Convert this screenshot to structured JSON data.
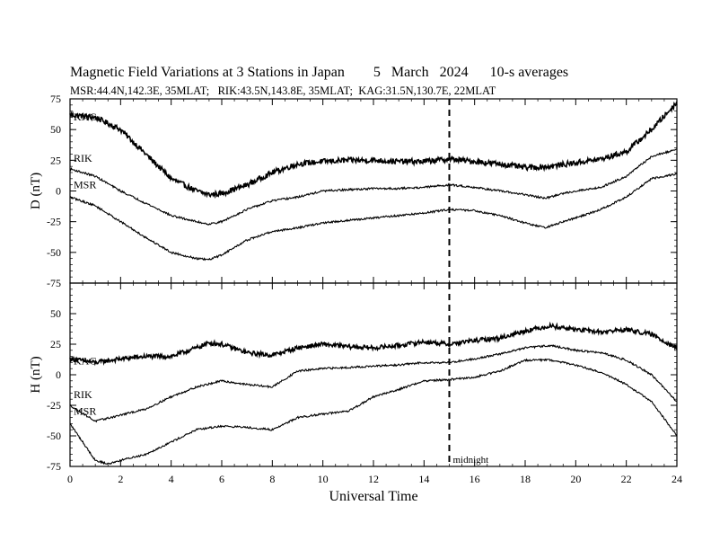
{
  "title": "Magnetic Field Variations at 3 Stations in Japan        5   March   2024      10-s averages",
  "subtitle": "MSR:44.4N,142.3E, 35MLAT;   RIK:43.5N,143.8E, 35MLAT;  KAG:31.5N,130.7E, 22MLAT",
  "chart_data": [
    {
      "type": "line",
      "panel": "top",
      "ylabel": "D (nT)",
      "xlabel": "",
      "xlim": [
        0,
        24
      ],
      "ylim": [
        -75,
        75
      ],
      "yticks": [
        -75,
        -50,
        -25,
        0,
        25,
        50,
        75
      ],
      "xticks": [
        0,
        2,
        4,
        6,
        8,
        10,
        12,
        14,
        16,
        18,
        20,
        22,
        24
      ],
      "vline": {
        "x": 15,
        "style": "dashed"
      },
      "series": [
        {
          "name": "KAG",
          "noise": 2.2,
          "x": [
            0,
            1,
            2,
            3,
            4,
            5,
            5.5,
            6,
            7,
            8,
            9,
            10,
            11,
            12,
            13,
            14,
            15,
            16,
            17,
            18,
            19,
            20,
            21,
            22,
            23,
            24
          ],
          "y": [
            62,
            60,
            50,
            30,
            10,
            0,
            -3,
            -2,
            5,
            15,
            22,
            24,
            25,
            25,
            24,
            24,
            26,
            24,
            22,
            19,
            20,
            23,
            26,
            32,
            50,
            72
          ]
        },
        {
          "name": "RIK",
          "noise": 0.8,
          "x": [
            0,
            1,
            2,
            3,
            4,
            5,
            5.5,
            6,
            7,
            8,
            9,
            10,
            11,
            12,
            13,
            14,
            15,
            16,
            17,
            18,
            18.8,
            19.5,
            20,
            21,
            22,
            23,
            24
          ],
          "y": [
            18,
            12,
            0,
            -10,
            -20,
            -25,
            -27,
            -25,
            -15,
            -8,
            -5,
            0,
            1,
            2,
            2,
            3,
            5,
            3,
            0,
            -3,
            -6,
            -2,
            0,
            3,
            12,
            28,
            34
          ]
        },
        {
          "name": "MSR",
          "noise": 0.8,
          "x": [
            0,
            1,
            2,
            3,
            4,
            5,
            5.5,
            6,
            7,
            8,
            9,
            10,
            11,
            12,
            13,
            14,
            15,
            16,
            17,
            18,
            18.8,
            19.5,
            20,
            21,
            22,
            23,
            24
          ],
          "y": [
            -5,
            -12,
            -25,
            -38,
            -50,
            -55,
            -56,
            -52,
            -40,
            -33,
            -30,
            -26,
            -24,
            -22,
            -20,
            -18,
            -15,
            -16,
            -20,
            -26,
            -30,
            -25,
            -22,
            -15,
            -5,
            10,
            14
          ]
        }
      ],
      "annotations": []
    },
    {
      "type": "line",
      "panel": "bottom",
      "ylabel": "H (nT)",
      "xlabel": "Universal Time",
      "xlim": [
        0,
        24
      ],
      "ylim": [
        -75,
        75
      ],
      "yticks": [
        -75,
        -50,
        -25,
        0,
        25,
        50
      ],
      "xticks": [
        0,
        2,
        4,
        6,
        8,
        10,
        12,
        14,
        16,
        18,
        20,
        22,
        24
      ],
      "vline": {
        "x": 15,
        "style": "dashed"
      },
      "series": [
        {
          "name": "KAG",
          "noise": 1.8,
          "x": [
            0,
            1,
            2,
            3,
            4,
            5,
            5.5,
            6,
            7,
            8,
            9,
            10,
            11,
            12,
            13,
            14,
            15,
            16,
            17,
            18,
            19,
            20,
            21,
            22,
            23,
            24
          ],
          "y": [
            13,
            10,
            13,
            15,
            15,
            22,
            26,
            25,
            18,
            16,
            22,
            25,
            23,
            22,
            24,
            27,
            25,
            28,
            30,
            36,
            40,
            37,
            35,
            37,
            33,
            22
          ]
        },
        {
          "name": "RIK",
          "noise": 0.8,
          "x": [
            0,
            1,
            2,
            3,
            4,
            5,
            6,
            7,
            8,
            9,
            10,
            11,
            12,
            13,
            14,
            15,
            16,
            17,
            18,
            19,
            20,
            21,
            22,
            23,
            24
          ],
          "y": [
            -25,
            -38,
            -33,
            -28,
            -18,
            -10,
            -5,
            -8,
            -10,
            3,
            5,
            6,
            7,
            8,
            10,
            10,
            13,
            17,
            22,
            24,
            20,
            18,
            12,
            0,
            -22
          ]
        },
        {
          "name": "MSR",
          "noise": 0.8,
          "x": [
            0,
            0.5,
            1,
            1.5,
            2,
            3,
            4,
            5,
            6,
            7,
            8,
            9,
            10,
            11,
            12,
            13,
            14,
            15,
            16,
            17,
            18,
            19,
            20,
            21,
            22,
            23,
            24
          ],
          "y": [
            -40,
            -55,
            -70,
            -73,
            -70,
            -65,
            -55,
            -45,
            -42,
            -43,
            -45,
            -35,
            -32,
            -30,
            -18,
            -12,
            -5,
            -4,
            -2,
            3,
            12,
            12,
            8,
            2,
            -8,
            -22,
            -50
          ]
        }
      ],
      "annotations": [
        "midnight"
      ]
    }
  ]
}
